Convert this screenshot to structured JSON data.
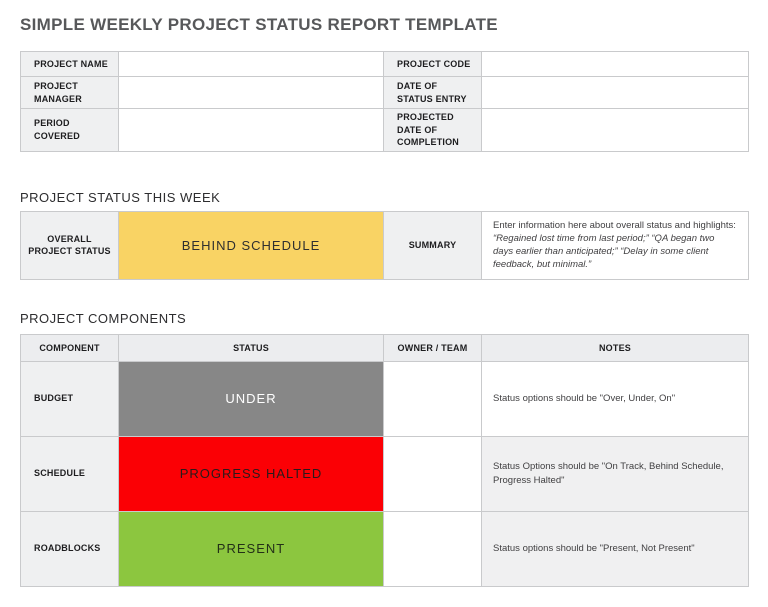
{
  "page": {
    "title": "SIMPLE WEEKLY PROJECT STATUS REPORT TEMPLATE"
  },
  "info_table": {
    "rows": [
      {
        "left_label": "PROJECT NAME",
        "left_value": "",
        "right_label": "PROJECT CODE",
        "right_value": ""
      },
      {
        "left_label": "PROJECT MANAGER",
        "left_value": "",
        "right_label": "DATE OF STATUS ENTRY",
        "right_value": ""
      },
      {
        "left_label": "PERIOD COVERED",
        "left_value": "",
        "right_label": "PROJECTED DATE OF COMPLETION",
        "right_value": ""
      }
    ]
  },
  "status_section": {
    "heading": "PROJECT STATUS THIS WEEK",
    "overall_label": "OVERALL PROJECT STATUS",
    "status_value": "BEHIND SCHEDULE",
    "status_color": "#F9D364",
    "status_text_color": "#2F2F2F",
    "summary_label": "SUMMARY",
    "summary_intro": "Enter information here about overall status and highlights: ",
    "summary_quote": "“Regained lost time from last period;” “QA began two days earlier than anticipated;” “Delay in some client feedback, but minimal.”"
  },
  "components_section": {
    "heading": "PROJECT COMPONENTS",
    "headers": {
      "component": "COMPONENT",
      "status": "STATUS",
      "owner": "OWNER / TEAM",
      "notes": "NOTES"
    },
    "rows": [
      {
        "component": "BUDGET",
        "status": "UNDER",
        "status_color": "#878787",
        "status_text_color": "#FFFFFF",
        "owner": "",
        "notes": "Status options should be \"Over, Under, On\"",
        "notes_bg": "#FFFFFF"
      },
      {
        "component": "SCHEDULE",
        "status": "PROGRESS HALTED",
        "status_color": "#FB0005",
        "status_text_color": "#2A1A1A",
        "owner": "",
        "notes": "Status Options should be \"On Track, Behind Schedule, Progress Halted\"",
        "notes_bg": "#F0F0F1"
      },
      {
        "component": "ROADBLOCKS",
        "status": "PRESENT",
        "status_color": "#8CC63F",
        "status_text_color": "#233018",
        "owner": "",
        "notes": "Status options should be \"Present, Not Present\"",
        "notes_bg": "#F0F0F1"
      }
    ]
  },
  "colors": {
    "title": "#57585A",
    "section_heading": "#2D2D2F",
    "label_bg": "#EFF0F1",
    "header_bg": "#ECEDEF",
    "border": "#C9CACC",
    "notes_text": "#414042"
  }
}
